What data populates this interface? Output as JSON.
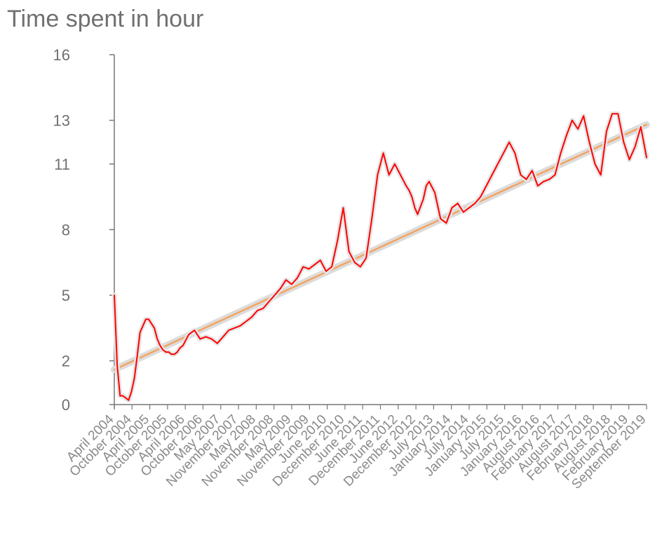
{
  "chart_data": {
    "type": "line",
    "title": "Time spent in hour",
    "xlabel": "",
    "ylabel": "",
    "ylim": [
      0,
      16
    ],
    "yticks": [
      "0",
      "2",
      "5",
      "8",
      "11",
      "13",
      "16"
    ],
    "x_tick_labels": [
      "April 2004",
      "October 2004",
      "April 2005",
      "October 2005",
      "April 2006",
      "October 2006",
      "May 2007",
      "November 2007",
      "May 2008",
      "November 2008",
      "May 2009",
      "November 2009",
      "June 2010",
      "December 2010",
      "June 2011",
      "December 2011",
      "June 2012",
      "December 2012",
      "July 2013",
      "January 2014",
      "July 2014",
      "January 2015",
      "July 2015",
      "January 2016",
      "August 2016",
      "February 2017",
      "August 2017",
      "February 2018",
      "August 2018",
      "February 2019",
      "September 2019"
    ],
    "series": [
      {
        "color": "#ff0000",
        "x": [
          "2004-04",
          "2004-05",
          "2004-06",
          "2004-07",
          "2004-08",
          "2004-09",
          "2004-10",
          "2004-11",
          "2004-12",
          "2005-01",
          "2005-02",
          "2005-03",
          "2005-04",
          "2005-05",
          "2005-06",
          "2005-07",
          "2005-08",
          "2005-09",
          "2005-10",
          "2005-11",
          "2005-12",
          "2006-01",
          "2006-02",
          "2006-03",
          "2006-04",
          "2006-06",
          "2006-08",
          "2006-10",
          "2006-12",
          "2007-02",
          "2007-04",
          "2007-06",
          "2007-08",
          "2007-10",
          "2007-12",
          "2008-02",
          "2008-04",
          "2008-06",
          "2008-08",
          "2008-10",
          "2008-12",
          "2009-02",
          "2009-04",
          "2009-06",
          "2009-08",
          "2009-10",
          "2009-12",
          "2010-02",
          "2010-04",
          "2010-06",
          "2010-08",
          "2010-10",
          "2010-12",
          "2011-02",
          "2011-04",
          "2011-06",
          "2011-08",
          "2011-10",
          "2011-12",
          "2012-01",
          "2012-02",
          "2012-04",
          "2012-06",
          "2012-08",
          "2012-10",
          "2012-11",
          "2012-12",
          "2013-01",
          "2013-02",
          "2013-04",
          "2013-05",
          "2013-06",
          "2013-08",
          "2013-10",
          "2013-12",
          "2014-02",
          "2014-04",
          "2014-06",
          "2014-08",
          "2014-10",
          "2014-12",
          "2015-02",
          "2015-04",
          "2015-06",
          "2015-08",
          "2015-10",
          "2015-12",
          "2016-02",
          "2016-04",
          "2016-06",
          "2016-08",
          "2016-10",
          "2016-12",
          "2017-02",
          "2017-04",
          "2017-06",
          "2017-08",
          "2017-10",
          "2017-12",
          "2018-02",
          "2018-04",
          "2018-06",
          "2018-08",
          "2018-10",
          "2018-12",
          "2019-02",
          "2019-04",
          "2019-06",
          "2019-08",
          "2019-10"
        ],
        "values": [
          5.0,
          1.8,
          0.4,
          0.4,
          0.3,
          0.2,
          0.6,
          1.2,
          2.2,
          3.3,
          3.6,
          3.9,
          3.9,
          3.7,
          3.5,
          3.0,
          2.7,
          2.5,
          2.4,
          2.4,
          2.3,
          2.3,
          2.4,
          2.6,
          2.7,
          3.2,
          3.4,
          3.0,
          3.1,
          3.0,
          2.8,
          3.1,
          3.4,
          3.5,
          3.6,
          3.8,
          4.0,
          4.3,
          4.4,
          4.7,
          5.0,
          5.3,
          5.7,
          5.5,
          5.8,
          6.3,
          6.2,
          6.4,
          6.6,
          6.1,
          6.3,
          7.5,
          9.0,
          7.0,
          6.5,
          6.3,
          6.7,
          8.5,
          10.5,
          11.0,
          11.5,
          10.5,
          11.0,
          10.5,
          10.0,
          9.8,
          9.5,
          9.0,
          8.7,
          9.4,
          10.0,
          10.2,
          9.7,
          8.5,
          8.3,
          9.0,
          9.2,
          8.8,
          9.0,
          9.2,
          9.5,
          10.0,
          10.5,
          11.0,
          11.5,
          12.0,
          11.5,
          10.5,
          10.3,
          10.7,
          10.0,
          10.2,
          10.3,
          10.5,
          11.5,
          12.3,
          13.0,
          12.6,
          13.2,
          12.0,
          11.0,
          10.5,
          12.5,
          13.3,
          13.3,
          12.0,
          11.2,
          11.8,
          12.7,
          11.3
        ]
      },
      {
        "type": "trend",
        "color": "#f4a460",
        "x": [
          "2004-04",
          "2019-10"
        ],
        "values": [
          1.6,
          12.8
        ]
      }
    ],
    "grid": false
  }
}
